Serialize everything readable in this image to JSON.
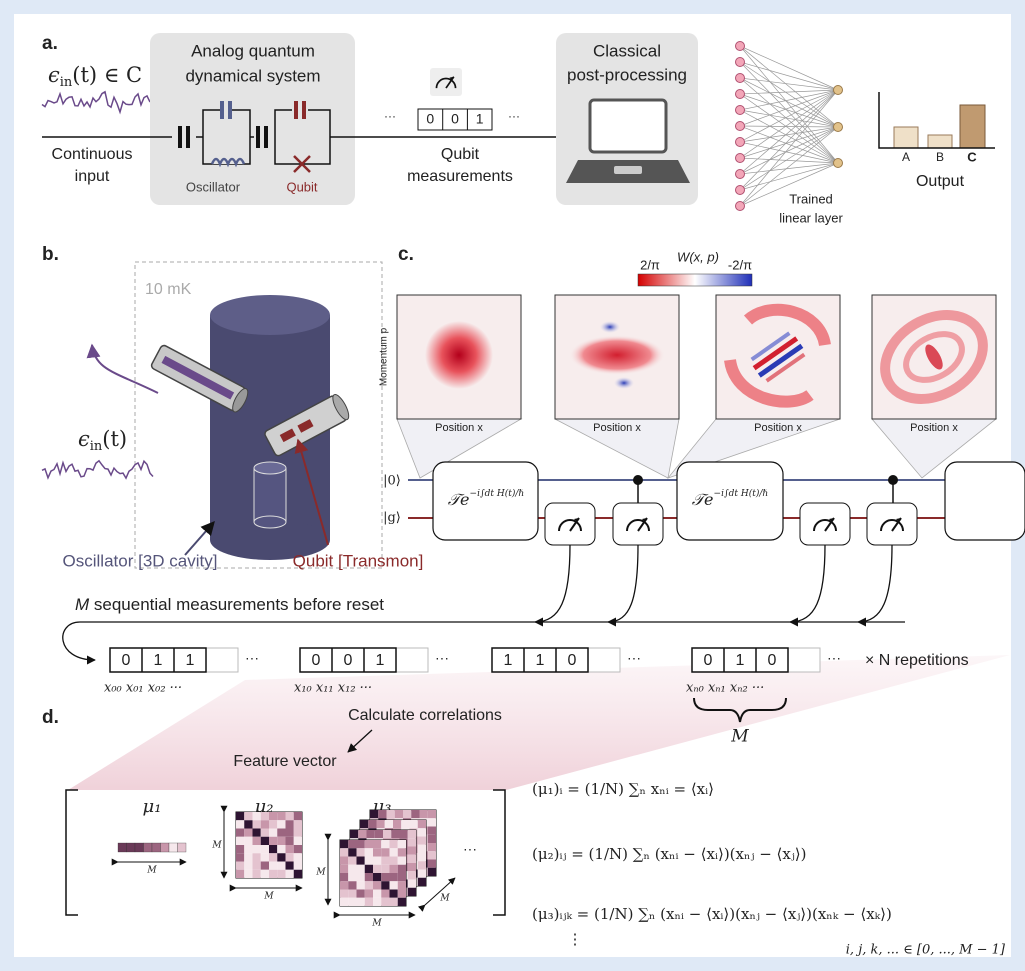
{
  "panel_a": {
    "label": "a.",
    "signal_symbol": "ϵ",
    "signal_sub": "in",
    "signal_rest": "(t) ∈ C",
    "input_label": [
      "Continuous",
      "input"
    ],
    "system_title": [
      "Analog quantum",
      "dynamical system"
    ],
    "oscillator": "Oscillator",
    "qubit": "Qubit",
    "measured_bits": [
      "0",
      "0",
      "1"
    ],
    "ellipsis": "···",
    "measurements_label": [
      "Qubit",
      "measurements"
    ],
    "postprocessing_title": [
      "Classical",
      "post-processing"
    ],
    "layer_label": [
      "Trained",
      "linear layer"
    ],
    "output_categories": [
      "A",
      "B",
      "C"
    ],
    "output_label": "Output"
  },
  "panel_b": {
    "label": "b.",
    "temperature": "10 mK",
    "signal_symbol": "ϵ",
    "signal_sub": "in",
    "signal_rest": "(t)",
    "oscillator": "Oscillator [3D cavity]",
    "qubit": "Qubit [Transmon]"
  },
  "panel_c": {
    "label": "c.",
    "colorbar_title": "W(x, p)",
    "colorbar_max": "2/π",
    "colorbar_min": "-2/π",
    "y_axis": "Momentum p",
    "x_axis_labels": [
      "Position x",
      "Position x",
      "Position x",
      "Position x"
    ],
    "oscillator_state": "|0⟩",
    "qubit_state": "|g⟩",
    "gates": [
      {
        "base": "𝒯e",
        "exponent": "−i∫dt H(t)/ℏ"
      },
      {
        "base": "𝒯e",
        "exponent": "−i∫dt H(t)/ℏ"
      }
    ],
    "caption_symbol": "M",
    "caption_rest": " sequential measurements before reset",
    "bitstrings": [
      {
        "bits": [
          "0",
          "1",
          "1"
        ],
        "indices": "x₀₀ x₀₁ x₀₂ ···"
      },
      {
        "bits": [
          "0",
          "0",
          "1"
        ],
        "indices": "x₁₀ x₁₁ x₁₂ ···"
      },
      {
        "bits": [
          "1",
          "1",
          "0"
        ]
      },
      {
        "bits": [
          "0",
          "1",
          "0"
        ],
        "indices": "xₙ₀ xₙ₁ xₙ₂ ···"
      }
    ],
    "ellipsis": "···",
    "repetitions": "× N repetitions",
    "length_label": "M"
  },
  "panel_d": {
    "label": "d.",
    "calc": "Calculate correlations",
    "feature": "Feature vector",
    "moments": [
      "μ₁",
      "μ₂",
      "μ₃"
    ],
    "dim": "M",
    "ellipsis": "···",
    "equations": [
      "(μ₁)ᵢ  =  (1/N) ∑ₙ xₙᵢ  =  ⟨xᵢ⟩",
      "(μ₂)ᵢⱼ  =  (1/N) ∑ₙ (xₙᵢ − ⟨xᵢ⟩)(xₙⱼ − ⟨xⱼ⟩)",
      "(μ₃)ᵢⱼₖ  =  (1/N) ∑ₙ (xₙᵢ − ⟨xᵢ⟩)(xₙⱼ − ⟨xⱼ⟩)(xₙₖ − ⟨xₖ⟩)"
    ],
    "vdots": "⋮",
    "domain": "i, j, k, ... ∈ [0, ..., M − 1]"
  }
}
